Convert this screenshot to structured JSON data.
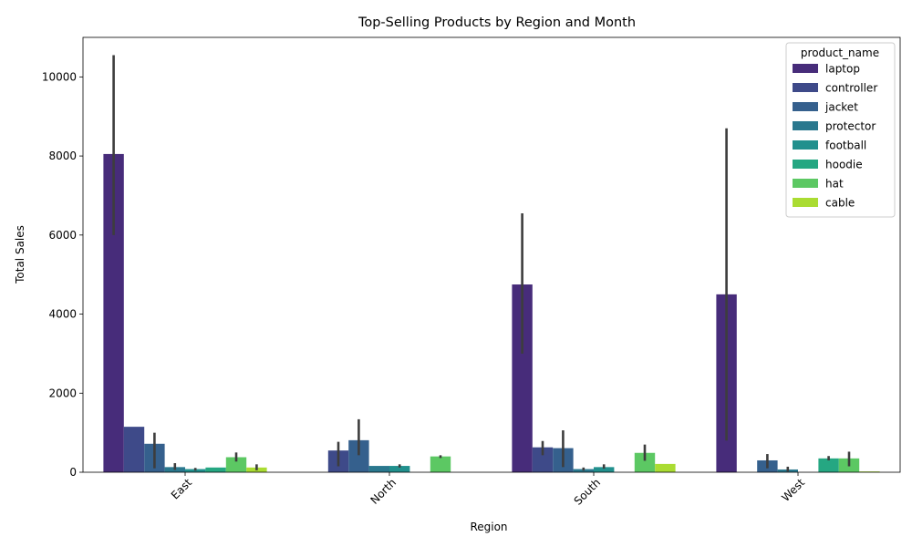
{
  "chart_data": {
    "type": "bar",
    "title": "Top-Selling Products by Region and Month",
    "xlabel": "Region",
    "ylabel": "Total Sales",
    "categories": [
      "East",
      "North",
      "South",
      "West"
    ],
    "ylim": [
      0,
      11000
    ],
    "yticks": [
      0,
      2000,
      4000,
      6000,
      8000,
      10000
    ],
    "legend_title": "product_name",
    "legend_position": "top-right",
    "grid": false,
    "series": [
      {
        "name": "laptop",
        "color": "#472c7a",
        "values": [
          8050,
          null,
          4750,
          4500
        ],
        "err_low": [
          6000,
          null,
          3000,
          800
        ],
        "err_high": [
          10550,
          null,
          6550,
          8700
        ]
      },
      {
        "name": "controller",
        "color": "#3e4a89",
        "values": [
          1150,
          550,
          630,
          null
        ],
        "err_low": [
          null,
          150,
          430,
          null
        ],
        "err_high": [
          null,
          770,
          790,
          null
        ]
      },
      {
        "name": "jacket",
        "color": "#35608d",
        "values": [
          720,
          810,
          610,
          300
        ],
        "err_low": [
          100,
          430,
          130,
          100
        ],
        "err_high": [
          1000,
          1340,
          1060,
          460
        ]
      },
      {
        "name": "protector",
        "color": "#2a788e",
        "values": [
          130,
          160,
          80,
          70
        ],
        "err_low": [
          60,
          null,
          40,
          20
        ],
        "err_high": [
          230,
          null,
          120,
          140
        ]
      },
      {
        "name": "football",
        "color": "#21908d",
        "values": [
          80,
          160,
          130,
          null
        ],
        "err_low": [
          40,
          120,
          90,
          null
        ],
        "err_high": [
          110,
          200,
          200,
          null
        ]
      },
      {
        "name": "hoodie",
        "color": "#25a782",
        "values": [
          120,
          null,
          null,
          350
        ],
        "err_low": [
          null,
          null,
          null,
          300
        ],
        "err_high": [
          null,
          null,
          null,
          410
        ]
      },
      {
        "name": "hat",
        "color": "#5cc863",
        "values": [
          380,
          400,
          490,
          350
        ],
        "err_low": [
          270,
          360,
          290,
          150
        ],
        "err_high": [
          500,
          430,
          700,
          520
        ]
      },
      {
        "name": "cable",
        "color": "#aadc32",
        "values": [
          120,
          null,
          210,
          20
        ],
        "err_low": [
          50,
          null,
          null,
          null
        ],
        "err_high": [
          200,
          null,
          null,
          null
        ]
      }
    ]
  }
}
